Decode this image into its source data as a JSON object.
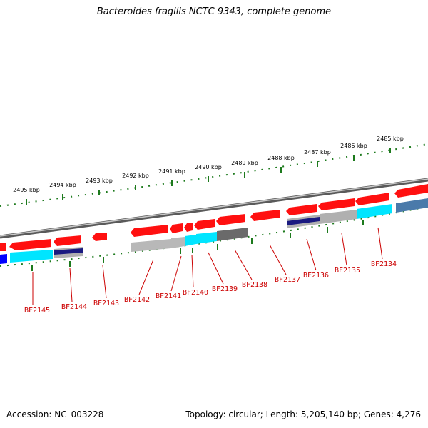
{
  "header": {
    "title": "Bacteroides fragilis NCTC 9343, complete genome"
  },
  "footer": {
    "accession": "Accession: NC_003228",
    "summary": "Topology: circular; Length: 5,205,140 bp; Genes: 4,276"
  },
  "colors": {
    "backbone": "#8a8a8a",
    "scale_ticks": "#1d7a1d",
    "gene_forward": "#ff0000",
    "gene_label": "#cc0000",
    "cds_cyan": "#00e5ff",
    "cds_navy": "#1a1a80",
    "cds_blue": "#0000ff",
    "cds_gray": "#b0b0b0",
    "cds_darkgray": "#6a6a6a",
    "cds_steel": "#4a7aaa"
  },
  "scale": {
    "ticks": [
      {
        "kbp": 2495,
        "label": "2495 kbp"
      },
      {
        "kbp": 2494,
        "label": "2494 kbp"
      },
      {
        "kbp": 2493,
        "label": "2493 kbp"
      },
      {
        "kbp": 2492,
        "label": "2492 kbp"
      },
      {
        "kbp": 2491,
        "label": "2491 kbp"
      },
      {
        "kbp": 2490,
        "label": "2490 kbp"
      },
      {
        "kbp": 2489,
        "label": "2489 kbp"
      },
      {
        "kbp": 2488,
        "label": "2488 kbp"
      },
      {
        "kbp": 2487,
        "label": "2487 kbp"
      },
      {
        "kbp": 2486,
        "label": "2486 kbp"
      },
      {
        "kbp": 2485,
        "label": "2485 kbp"
      }
    ]
  },
  "genes": [
    {
      "label": "BF2145"
    },
    {
      "label": "BF2144"
    },
    {
      "label": "BF2143"
    },
    {
      "label": "BF2142"
    },
    {
      "label": "BF2141"
    },
    {
      "label": "BF2140"
    },
    {
      "label": "BF2139"
    },
    {
      "label": "BF2138"
    },
    {
      "label": "BF2137"
    },
    {
      "label": "BF2136"
    },
    {
      "label": "BF2135"
    },
    {
      "label": "BF2134"
    }
  ]
}
